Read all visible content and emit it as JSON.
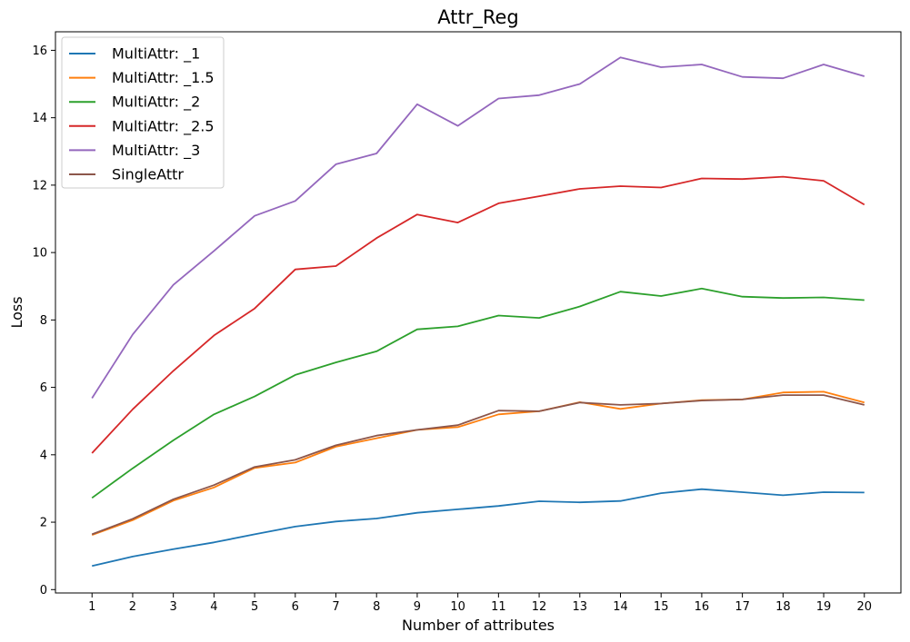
{
  "chart_data": {
    "type": "line",
    "title": "Attr_Reg",
    "xlabel": "Number of attributes",
    "ylabel": "Loss",
    "x": [
      1,
      2,
      3,
      4,
      5,
      6,
      7,
      8,
      9,
      10,
      11,
      12,
      13,
      14,
      15,
      16,
      17,
      18,
      19,
      20
    ],
    "xlim": [
      0.1,
      20.9
    ],
    "ylim": [
      -0.1,
      16.55
    ],
    "yticks": [
      0,
      2,
      4,
      6,
      8,
      10,
      12,
      14,
      16
    ],
    "grid": false,
    "legend_position": "top-left",
    "series": [
      {
        "name": "MultiAttr: _1",
        "color": "#1f77b4",
        "values": [
          0.7,
          0.98,
          1.2,
          1.4,
          1.64,
          1.87,
          2.02,
          2.11,
          2.28,
          2.38,
          2.48,
          2.62,
          2.59,
          2.63,
          2.86,
          2.98,
          2.89,
          2.8,
          2.89,
          2.88
        ]
      },
      {
        "name": "MultiAttr: _1.5",
        "color": "#ff7f0e",
        "values": [
          1.62,
          2.06,
          2.64,
          3.03,
          3.61,
          3.77,
          4.24,
          4.49,
          4.74,
          4.82,
          5.2,
          5.29,
          5.56,
          5.36,
          5.52,
          5.62,
          5.64,
          5.85,
          5.87,
          5.55
        ]
      },
      {
        "name": "MultiAttr: _2",
        "color": "#2ca02c",
        "values": [
          2.72,
          3.6,
          4.43,
          5.2,
          5.73,
          6.37,
          6.74,
          7.07,
          7.72,
          7.81,
          8.13,
          8.06,
          8.4,
          8.84,
          8.71,
          8.93,
          8.69,
          8.65,
          8.67,
          8.59
        ]
      },
      {
        "name": "MultiAttr: _2.5",
        "color": "#d62728",
        "values": [
          4.05,
          5.35,
          6.49,
          7.54,
          8.34,
          9.5,
          9.6,
          10.43,
          11.13,
          10.89,
          11.46,
          11.67,
          11.89,
          11.97,
          11.93,
          12.2,
          12.18,
          12.25,
          12.13,
          11.42
        ]
      },
      {
        "name": "MultiAttr: _3",
        "color": "#9467bd",
        "values": [
          5.68,
          7.57,
          9.04,
          10.05,
          11.09,
          11.53,
          12.62,
          12.94,
          14.4,
          13.76,
          14.57,
          14.67,
          15.0,
          15.79,
          15.5,
          15.58,
          15.21,
          15.17,
          15.58,
          15.23
        ]
      },
      {
        "name": "SingleAttr",
        "color": "#8c564b",
        "values": [
          1.64,
          2.1,
          2.68,
          3.1,
          3.64,
          3.85,
          4.28,
          4.57,
          4.74,
          4.88,
          5.31,
          5.29,
          5.55,
          5.48,
          5.52,
          5.61,
          5.64,
          5.77,
          5.77,
          5.48
        ]
      }
    ]
  }
}
